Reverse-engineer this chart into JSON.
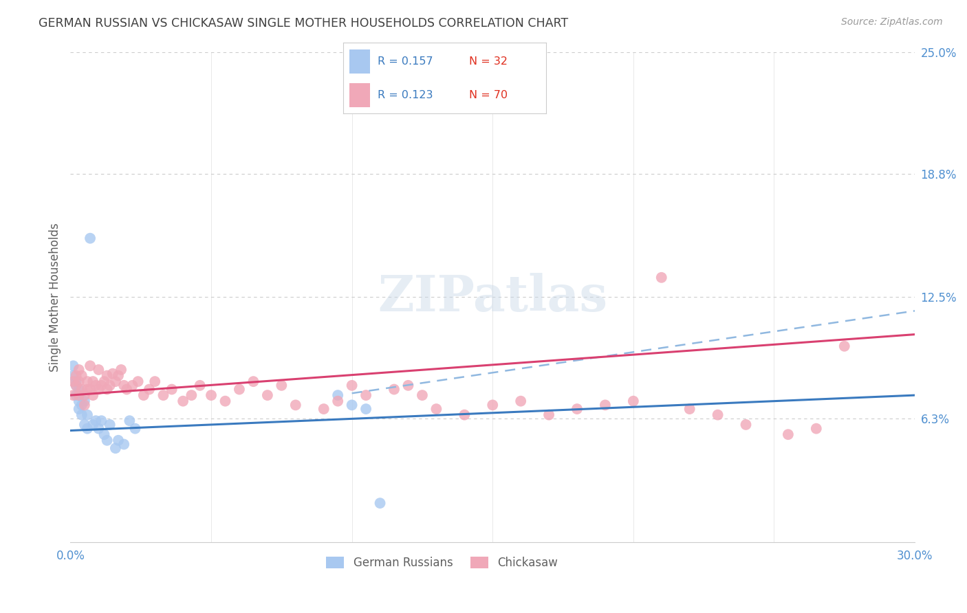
{
  "title": "GERMAN RUSSIAN VS CHICKASAW SINGLE MOTHER HOUSEHOLDS CORRELATION CHART",
  "source": "Source: ZipAtlas.com",
  "ylabel": "Single Mother Households",
  "xlim": [
    0.0,
    0.3
  ],
  "ylim": [
    0.0,
    0.25
  ],
  "grid_color": "#cccccc",
  "bg_color": "#ffffff",
  "watermark_text": "ZIPatlas",
  "legend_R1": "R = 0.157",
  "legend_N1": "N = 32",
  "legend_R2": "R = 0.123",
  "legend_N2": "N = 70",
  "blue_scatter_color": "#a8c8f0",
  "pink_scatter_color": "#f0a8b8",
  "line_blue_color": "#3a7abf",
  "line_pink_color": "#d94070",
  "line_dash_color": "#90b8e0",
  "title_color": "#404040",
  "axis_label_color": "#606060",
  "tick_color": "#5090d0",
  "legend_text_color": "#3a7abf",
  "legend_n_color": "#e03020",
  "gr_x": [
    0.001,
    0.001,
    0.002,
    0.002,
    0.002,
    0.003,
    0.003,
    0.003,
    0.003,
    0.004,
    0.004,
    0.005,
    0.005,
    0.006,
    0.006,
    0.007,
    0.008,
    0.009,
    0.01,
    0.011,
    0.012,
    0.013,
    0.014,
    0.016,
    0.017,
    0.019,
    0.021,
    0.023,
    0.095,
    0.1,
    0.105,
    0.11
  ],
  "gr_y": [
    0.085,
    0.09,
    0.08,
    0.082,
    0.075,
    0.078,
    0.075,
    0.072,
    0.068,
    0.07,
    0.065,
    0.072,
    0.06,
    0.065,
    0.058,
    0.155,
    0.06,
    0.062,
    0.058,
    0.062,
    0.055,
    0.052,
    0.06,
    0.048,
    0.052,
    0.05,
    0.062,
    0.058,
    0.075,
    0.07,
    0.068,
    0.02
  ],
  "ch_x": [
    0.001,
    0.001,
    0.002,
    0.002,
    0.003,
    0.003,
    0.003,
    0.004,
    0.004,
    0.005,
    0.005,
    0.006,
    0.006,
    0.007,
    0.007,
    0.008,
    0.008,
    0.009,
    0.01,
    0.01,
    0.011,
    0.012,
    0.013,
    0.013,
    0.014,
    0.015,
    0.016,
    0.017,
    0.018,
    0.019,
    0.02,
    0.022,
    0.024,
    0.026,
    0.028,
    0.03,
    0.033,
    0.036,
    0.04,
    0.043,
    0.046,
    0.05,
    0.055,
    0.06,
    0.065,
    0.07,
    0.075,
    0.08,
    0.09,
    0.095,
    0.1,
    0.105,
    0.115,
    0.12,
    0.125,
    0.13,
    0.14,
    0.15,
    0.16,
    0.17,
    0.18,
    0.19,
    0.2,
    0.21,
    0.22,
    0.23,
    0.24,
    0.255,
    0.265,
    0.275
  ],
  "ch_y": [
    0.075,
    0.082,
    0.085,
    0.08,
    0.088,
    0.082,
    0.075,
    0.078,
    0.085,
    0.075,
    0.07,
    0.082,
    0.078,
    0.09,
    0.078,
    0.082,
    0.075,
    0.08,
    0.088,
    0.078,
    0.08,
    0.082,
    0.078,
    0.085,
    0.08,
    0.086,
    0.082,
    0.085,
    0.088,
    0.08,
    0.078,
    0.08,
    0.082,
    0.075,
    0.078,
    0.082,
    0.075,
    0.078,
    0.072,
    0.075,
    0.08,
    0.075,
    0.072,
    0.078,
    0.082,
    0.075,
    0.08,
    0.07,
    0.068,
    0.072,
    0.08,
    0.075,
    0.078,
    0.08,
    0.075,
    0.068,
    0.065,
    0.07,
    0.072,
    0.065,
    0.068,
    0.07,
    0.072,
    0.135,
    0.068,
    0.065,
    0.06,
    0.055,
    0.058,
    0.1
  ],
  "blue_line_x0": 0.0,
  "blue_line_y0": 0.057,
  "blue_line_x1": 0.3,
  "blue_line_y1": 0.075,
  "pink_line_x0": 0.0,
  "pink_line_y0": 0.075,
  "pink_line_x1": 0.3,
  "pink_line_y1": 0.106,
  "dash_line_x0": 0.1,
  "dash_line_y0": 0.076,
  "dash_line_x1": 0.3,
  "dash_line_y1": 0.118
}
